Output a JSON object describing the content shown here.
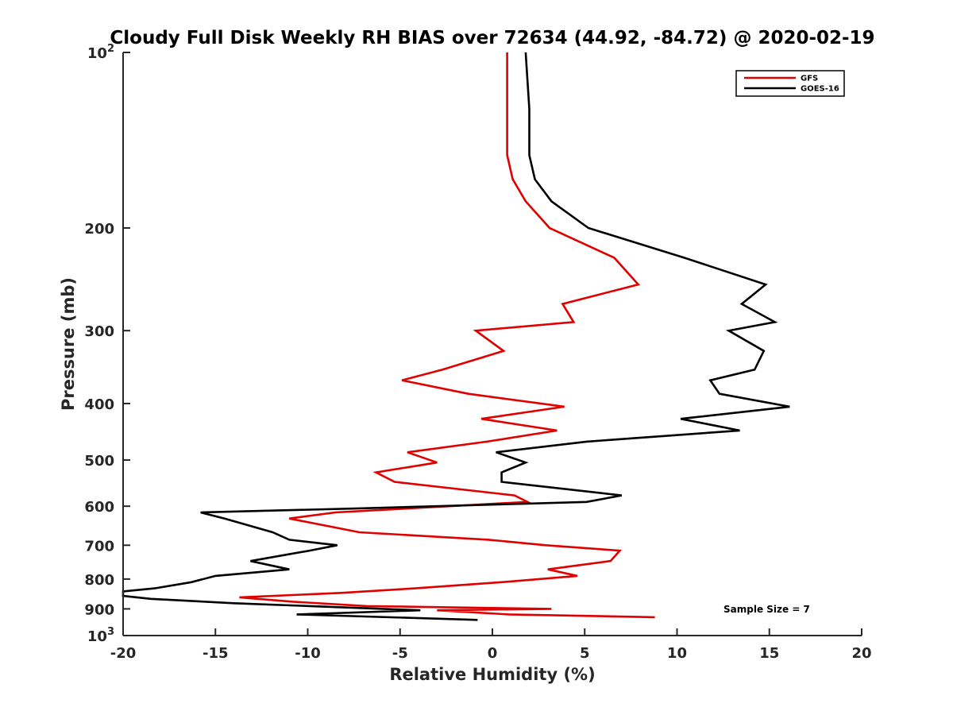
{
  "chart_data": {
    "type": "line",
    "title": "Cloudy Full Disk Weekly RH BIAS over 72634 (44.92, -84.72) @ 2020-02-19",
    "xlabel": "Relative Humidity (%)",
    "ylabel": "Pressure (mb)",
    "xlim": [
      -20,
      20
    ],
    "ylim": [
      100,
      1000
    ],
    "y_scale": "log",
    "y_reversed": true,
    "x_ticks": [
      "-20",
      "-15",
      "-10",
      "-5",
      "0",
      "5",
      "10",
      "15",
      "20"
    ],
    "y_ticks": [
      {
        "value": 100,
        "base": "10",
        "exp": "2"
      },
      {
        "value": 200,
        "label": "200"
      },
      {
        "value": 300,
        "label": "300"
      },
      {
        "value": 400,
        "label": "400"
      },
      {
        "value": 500,
        "label": "500"
      },
      {
        "value": 600,
        "label": "600"
      },
      {
        "value": 700,
        "label": "700"
      },
      {
        "value": 800,
        "label": "800"
      },
      {
        "value": 900,
        "label": "900"
      },
      {
        "value": 1000,
        "base": "10",
        "exp": "3"
      }
    ],
    "grid": false,
    "legend_position": "top-right",
    "annotation": "Sample Size = 7",
    "series": [
      {
        "name": "GFS",
        "color": "#e00000",
        "points": [
          [
            0.8,
            100
          ],
          [
            0.8,
            125
          ],
          [
            0.8,
            150
          ],
          [
            1.1,
            165
          ],
          [
            1.8,
            180
          ],
          [
            3.1,
            200
          ],
          [
            6.6,
            225
          ],
          [
            7.9,
            250
          ],
          [
            3.8,
            270
          ],
          [
            4.4,
            290
          ],
          [
            -0.9,
            300
          ],
          [
            0.6,
            325
          ],
          [
            -2.7,
            350
          ],
          [
            -4.9,
            365
          ],
          [
            -1.3,
            385
          ],
          [
            3.9,
            405
          ],
          [
            -0.6,
            425
          ],
          [
            3.5,
            445
          ],
          [
            -0.3,
            465
          ],
          [
            -4.6,
            485
          ],
          [
            -3.0,
            505
          ],
          [
            -6.3,
            525
          ],
          [
            -5.3,
            545
          ],
          [
            1.2,
            575
          ],
          [
            1.9,
            590
          ],
          [
            -8.5,
            615
          ],
          [
            -11.0,
            630
          ],
          [
            -7.2,
            665
          ],
          [
            -0.2,
            685
          ],
          [
            2.9,
            700
          ],
          [
            6.9,
            715
          ],
          [
            6.4,
            745
          ],
          [
            3.0,
            770
          ],
          [
            4.6,
            790
          ],
          [
            0.5,
            810
          ],
          [
            -4.2,
            830
          ],
          [
            -8.2,
            845
          ],
          [
            -13.7,
            860
          ],
          [
            -10.8,
            875
          ],
          [
            -6.8,
            890
          ],
          [
            3.2,
            900
          ],
          [
            -3.0,
            905
          ],
          [
            0.9,
            920
          ],
          [
            8.8,
            930
          ]
        ]
      },
      {
        "name": "GOES-16",
        "color": "#000000",
        "points": [
          [
            1.8,
            100
          ],
          [
            2.0,
            125
          ],
          [
            2.0,
            150
          ],
          [
            2.3,
            165
          ],
          [
            3.2,
            180
          ],
          [
            5.2,
            200
          ],
          [
            10.4,
            225
          ],
          [
            14.8,
            250
          ],
          [
            13.5,
            270
          ],
          [
            15.3,
            290
          ],
          [
            12.8,
            300
          ],
          [
            14.7,
            325
          ],
          [
            14.2,
            350
          ],
          [
            11.8,
            365
          ],
          [
            12.3,
            385
          ],
          [
            16.1,
            405
          ],
          [
            10.2,
            425
          ],
          [
            13.4,
            445
          ],
          [
            5.1,
            465
          ],
          [
            0.2,
            485
          ],
          [
            1.8,
            505
          ],
          [
            0.5,
            525
          ],
          [
            0.5,
            545
          ],
          [
            7.0,
            575
          ],
          [
            5.1,
            590
          ],
          [
            -7.0,
            605
          ],
          [
            -15.8,
            615
          ],
          [
            -14.5,
            630
          ],
          [
            -11.9,
            665
          ],
          [
            -11.0,
            685
          ],
          [
            -8.4,
            700
          ],
          [
            -9.9,
            715
          ],
          [
            -13.1,
            745
          ],
          [
            -11.0,
            770
          ],
          [
            -15.0,
            790
          ],
          [
            -16.3,
            810
          ],
          [
            -18.3,
            830
          ],
          [
            -20.0,
            840
          ],
          [
            -20.0,
            855
          ],
          [
            -18.5,
            865
          ],
          [
            -14.0,
            880
          ],
          [
            -3.9,
            905
          ],
          [
            -10.6,
            920
          ],
          [
            -0.8,
            940
          ]
        ]
      }
    ]
  }
}
